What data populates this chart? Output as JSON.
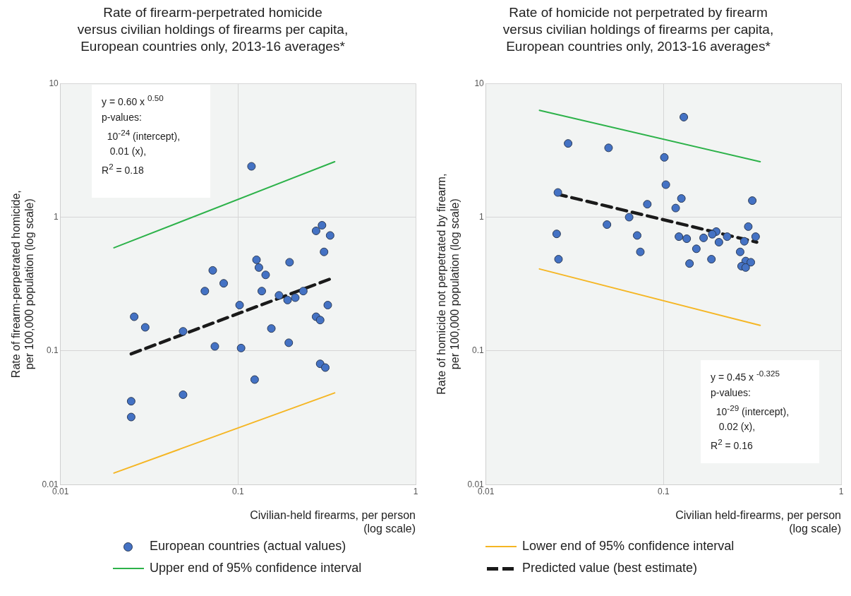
{
  "chart_data": [
    {
      "type": "scatter",
      "title": "Rate of firearm-perpetrated homicide\nversus civilian holdings of firearms per capita,\nEuropean countries only, 2013-16 averages*",
      "xlabel": "Civilian-held firearms, per person\n(log scale)",
      "ylabel": "Rate of firearm-perpetrated homicide,\nper 100,000 population (log scale)",
      "log": "xy",
      "xlim": [
        0.01,
        1
      ],
      "xticks": [
        0.01,
        0.1,
        1
      ],
      "ylim": [
        0.01,
        10
      ],
      "yticks": [
        0.01,
        0.1,
        1,
        10
      ],
      "grid": true,
      "legend": "bottom",
      "annotations": [
        "y = 0.60 x $^{0.50}$\np-values:\n  10$^{-24}$ (intercept),\n   0.01 (x),\nR$^{2}$ = 0.18"
      ],
      "series": [
        {
          "name": "European countries (actual values)",
          "type": "scatter",
          "marker": "circle",
          "color": "#4472c4",
          "x": [
            0.119,
            0.297,
            0.275,
            0.33,
            0.305,
            0.127,
            0.131,
            0.195,
            0.072,
            0.083,
            0.143,
            0.065,
            0.136,
            0.17,
            0.19,
            0.21,
            0.233,
            0.102,
            0.32,
            0.026,
            0.03,
            0.049,
            0.275,
            0.29,
            0.154,
            0.074,
            0.104,
            0.193,
            0.29,
            0.31,
            0.124,
            0.049,
            0.025,
            0.025
          ],
          "values": [
            2.4,
            0.87,
            0.79,
            0.73,
            0.55,
            0.48,
            0.42,
            0.46,
            0.4,
            0.32,
            0.37,
            0.28,
            0.28,
            0.26,
            0.24,
            0.25,
            0.28,
            0.22,
            0.22,
            0.18,
            0.15,
            0.14,
            0.18,
            0.17,
            0.147,
            0.108,
            0.105,
            0.115,
            0.08,
            0.075,
            0.061,
            0.047,
            0.042,
            0.032
          ]
        },
        {
          "name": "Lower end of 95% confidence interval",
          "type": "line",
          "marker": "none",
          "line_style": "solid",
          "color": "#f5b624",
          "x": [
            0.02,
            0.35
          ],
          "values": [
            0.0122,
            0.0485
          ]
        },
        {
          "name": "Upper end of 95% confidence interval",
          "type": "line",
          "marker": "none",
          "line_style": "solid",
          "color": "#2db24a",
          "x": [
            0.02,
            0.35
          ],
          "values": [
            0.59,
            2.6
          ]
        },
        {
          "name": "Predicted value (best estimate)",
          "type": "line",
          "marker": "none",
          "line_style": "dashed",
          "color": "#1a1a1a",
          "x": [
            0.025,
            0.34
          ],
          "values": [
            0.095,
            0.35
          ]
        }
      ]
    },
    {
      "type": "scatter",
      "title": "Rate of homicide not perpetrated by firearm\nversus civilian holdings of firearms per capita,\nEuropean countries only, 2013-16 averages*",
      "xlabel": "Civilian held-firearms, per person\n(log scale)",
      "ylabel": "Rate of homicide not perpetrated by firearm,\nper 100,000 population (log scale)",
      "log": "xy",
      "xlim": [
        0.01,
        1
      ],
      "xticks": [
        0.01,
        0.1,
        1
      ],
      "ylim": [
        0.01,
        10
      ],
      "yticks": [
        0.01,
        0.1,
        1,
        10
      ],
      "grid": true,
      "annotations": [
        "y = 0.45 x $^{-0.325}$\np-values:\n  10$^{-29}$ (intercept),\n   0.02 (x),\nR$^{2}$ = 0.16"
      ],
      "series": [
        {
          "type": "scatter",
          "marker": "circle",
          "color": "#4472c4",
          "x": [
            0.13,
            0.029,
            0.049,
            0.101,
            0.103,
            0.0254,
            0.126,
            0.316,
            0.081,
            0.117,
            0.064,
            0.048,
            0.3,
            0.025,
            0.071,
            0.198,
            0.188,
            0.33,
            0.122,
            0.135,
            0.168,
            0.228,
            0.285,
            0.205,
            0.153,
            0.074,
            0.27,
            0.0256,
            0.186,
            0.14,
            0.29,
            0.31,
            0.275,
            0.29
          ],
          "values": [
            5.6,
            3.56,
            3.3,
            2.8,
            1.75,
            1.53,
            1.38,
            1.33,
            1.25,
            1.17,
            1.0,
            0.88,
            0.85,
            0.75,
            0.73,
            0.78,
            0.745,
            0.715,
            0.715,
            0.69,
            0.7,
            0.715,
            0.66,
            0.65,
            0.58,
            0.55,
            0.55,
            0.485,
            0.485,
            0.45,
            0.47,
            0.46,
            0.43,
            0.42
          ]
        },
        {
          "type": "line",
          "marker": "none",
          "line_style": "solid",
          "color": "#f5b624",
          "x": [
            0.02,
            0.35
          ],
          "values": [
            0.41,
            0.155
          ]
        },
        {
          "type": "line",
          "marker": "none",
          "line_style": "solid",
          "color": "#2db24a",
          "x": [
            0.02,
            0.35
          ],
          "values": [
            6.3,
            2.6
          ]
        },
        {
          "type": "line",
          "marker": "none",
          "line_style": "dashed",
          "color": "#1a1a1a",
          "x": [
            0.025,
            0.335
          ],
          "values": [
            1.49,
            0.65
          ]
        }
      ]
    }
  ]
}
